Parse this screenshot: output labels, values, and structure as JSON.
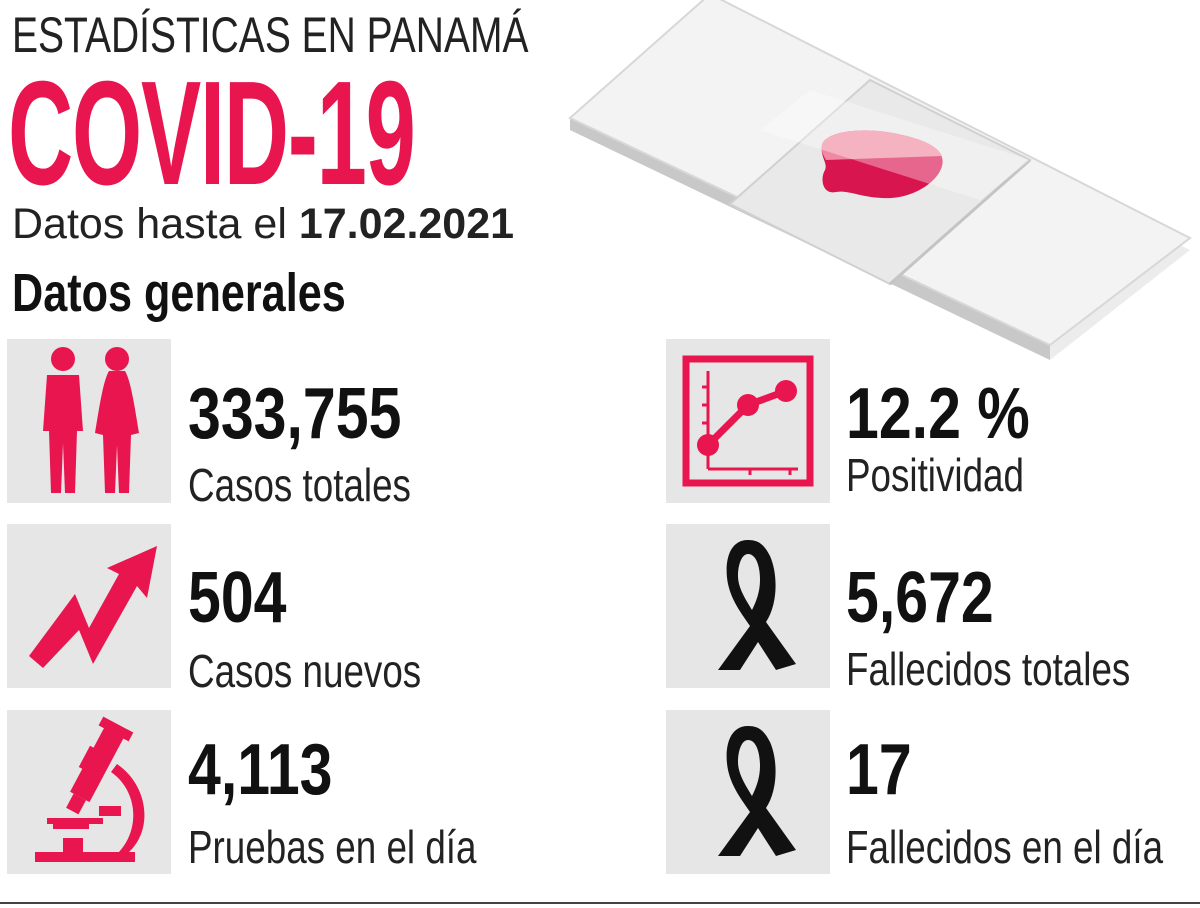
{
  "header": {
    "supertitle": "ESTADÍSTICAS EN PANAMÁ",
    "title": "COVID-19",
    "date_prefix": "Datos hasta el",
    "date": "17.02.2021",
    "section_title": "Datos generales"
  },
  "colors": {
    "accent": "#e8154e",
    "tile_bg": "#e6e6e6",
    "text": "#111111"
  },
  "stats": [
    {
      "value": "333,755",
      "label": "Casos totales",
      "icon": "people-icon"
    },
    {
      "value": "504",
      "label": "Casos nuevos",
      "icon": "trend-arrow-icon"
    },
    {
      "value": "4,113",
      "label": "Pruebas en el día",
      "icon": "microscope-icon"
    },
    {
      "value": "12.2 %",
      "label": "Positividad",
      "icon": "line-chart-icon"
    },
    {
      "value": "5,672",
      "label": "Fallecidos totales",
      "icon": "ribbon-icon"
    },
    {
      "value": "17",
      "label": "Fallecidos en el día",
      "icon": "ribbon-icon"
    }
  ],
  "illustration": {
    "icon": "microscope-slide-with-blood-sample"
  }
}
